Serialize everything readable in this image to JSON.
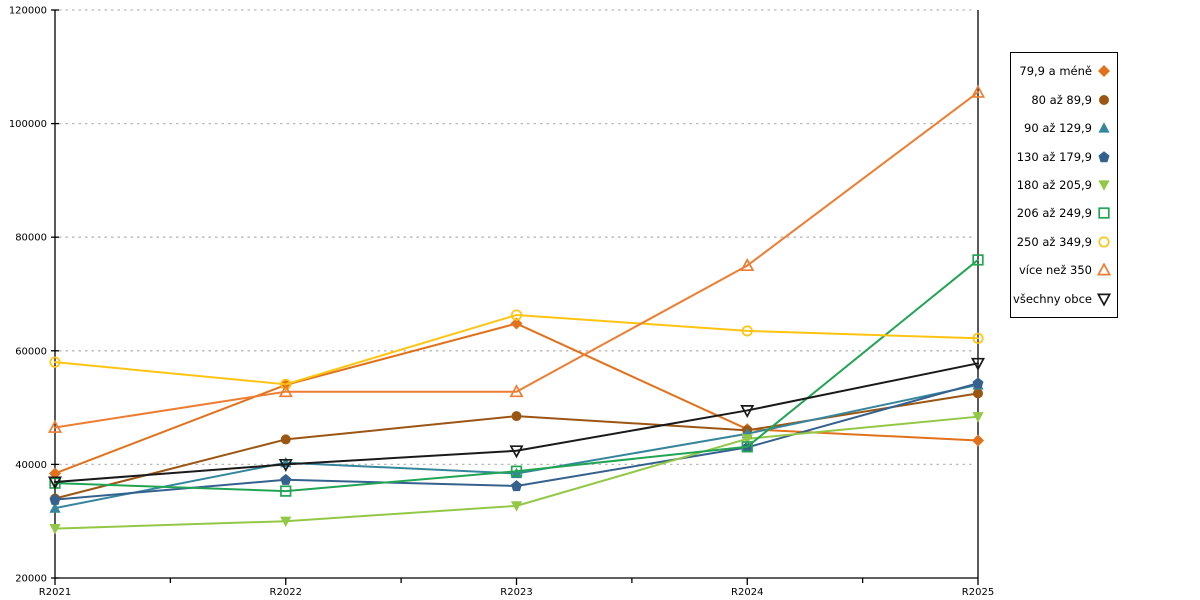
{
  "chart_data": {
    "type": "line",
    "title": "",
    "xlabel": "",
    "ylabel": "",
    "ylim": [
      20000,
      120000
    ],
    "ytick_step": 20000,
    "ytick_labels": [
      "20000",
      "40000",
      "60000",
      "80000",
      "100000",
      "120000"
    ],
    "grid": "horizontal-dotted",
    "legend_position": "right",
    "categories": [
      "R2021",
      "R2022",
      "R2023",
      "R2024",
      "R2025"
    ],
    "series": [
      {
        "name": "79,9 a méně",
        "color": "#E2711B",
        "marker": "diamond",
        "fill": "filled",
        "values": [
          38400,
          54000,
          64800,
          46200,
          44200
        ]
      },
      {
        "name": "80 až 89,9",
        "color": "#9C5613",
        "marker": "circle",
        "fill": "filled",
        "values": [
          34000,
          44400,
          48500,
          46000,
          52500
        ]
      },
      {
        "name": "90 až 129,9",
        "color": "#35869C",
        "marker": "triangle-up",
        "fill": "filled",
        "values": [
          32300,
          40300,
          38400,
          45400,
          54000
        ]
      },
      {
        "name": "130 až 179,9",
        "color": "#35618F",
        "marker": "pentagon",
        "fill": "filled",
        "values": [
          33800,
          37300,
          36200,
          43000,
          54300
        ]
      },
      {
        "name": "180 až 205,9",
        "color": "#92C846",
        "marker": "triangle-down",
        "fill": "filled",
        "values": [
          28700,
          30000,
          32700,
          44500,
          48400
        ]
      },
      {
        "name": "206 až 249,9",
        "color": "#22A455",
        "marker": "square",
        "fill": "open",
        "values": [
          36700,
          35300,
          38800,
          43100,
          76000
        ]
      },
      {
        "name": "250 až 349,9",
        "color": "#FFC412",
        "marker": "circle",
        "fill": "open",
        "values": [
          58000,
          54100,
          66300,
          63500,
          62200
        ]
      },
      {
        "name": "více než 350",
        "color": "#ED7D31",
        "marker": "triangle-up",
        "fill": "open",
        "values": [
          46500,
          52800,
          52800,
          75000,
          105500
        ]
      },
      {
        "name": "všechny obce",
        "color": "#1A1A1A",
        "marker": "triangle-down",
        "fill": "open",
        "values": [
          36900,
          40000,
          42400,
          49500,
          57800
        ]
      }
    ]
  }
}
